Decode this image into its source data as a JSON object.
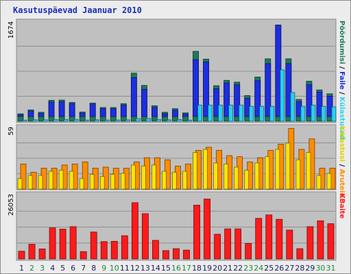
{
  "chart_data": {
    "type": "bar",
    "title": "Kasutuspäevad Jaanuar 2010",
    "categories": [
      "1",
      "2",
      "3",
      "4",
      "5",
      "6",
      "7",
      "8",
      "9",
      "10",
      "11",
      "12",
      "13",
      "14",
      "15",
      "16",
      "17",
      "18",
      "19",
      "20",
      "21",
      "22",
      "23",
      "24",
      "25",
      "26",
      "27",
      "28",
      "29",
      "30",
      "31"
    ],
    "weekend_days": [
      "2",
      "3",
      "9",
      "10",
      "16",
      "17",
      "23",
      "24",
      "30",
      "31"
    ],
    "panels": [
      {
        "id": "top",
        "max_label": "1674",
        "ylim": [
          0,
          1674
        ],
        "right_labels": [
          "Külastused",
          "Faile",
          "Pöördumisi"
        ],
        "series": [
          {
            "name": "Pöördumisi",
            "color": "#1c7a5a",
            "values": [
              125,
              190,
              150,
              350,
              355,
              315,
              155,
              305,
              230,
              230,
              295,
              805,
              600,
              260,
              150,
              210,
              140,
              1170,
              1040,
              595,
              685,
              655,
              430,
              740,
              1045,
              1610,
              1045,
              365,
              670,
              525,
              460
            ]
          },
          {
            "name": "Faile",
            "color": "#1c2ee0",
            "values": [
              105,
              170,
              130,
              320,
              325,
              295,
              135,
              285,
              210,
              210,
              270,
              730,
              535,
              230,
              125,
              185,
              120,
              1030,
              990,
              545,
              640,
              610,
              385,
              680,
              965,
              1610,
              965,
              325,
              610,
              490,
              420
            ]
          },
          {
            "name": "Külastused",
            "color": "#2ad0f0",
            "values": [
              20,
              25,
              25,
              30,
              30,
              30,
              20,
              25,
              22,
              22,
              25,
              45,
              45,
              30,
              25,
              30,
              20,
              270,
              270,
              270,
              270,
              270,
              250,
              250,
              250,
              860,
              480,
              250,
              270,
              250,
              240
            ]
          }
        ]
      },
      {
        "id": "middle",
        "max_label": "59",
        "ylim": [
          0,
          59
        ],
        "right_labels": [
          "Aruteid",
          "Külastusi"
        ],
        "series": [
          {
            "name": "Aruteid",
            "color": "#ff8c00",
            "values": [
              24,
              16,
              20,
              20,
              23,
              24,
              26,
              20,
              21,
              20,
              20,
              26,
              30,
              30,
              28,
              22,
              24,
              37,
              40,
              37,
              32,
              31,
              26,
              30,
              37,
              43,
              58,
              38,
              48,
              20,
              20
            ]
          },
          {
            "name": "Külastusi",
            "color": "#ffe400",
            "values": [
              10,
              13,
              13,
              17,
              18,
              17,
              10,
              14,
              12,
              14,
              15,
              23,
              22,
              23,
              17,
              16,
              17,
              35,
              38,
              25,
              24,
              21,
              18,
              25,
              31,
              38,
              44,
              28,
              35,
              13,
              15
            ]
          }
        ]
      },
      {
        "id": "bottom",
        "max_label": "26053",
        "ylim": [
          0,
          26053
        ],
        "right_labels": [
          "KBaite"
        ],
        "series": [
          {
            "name": "KBaite",
            "color": "#ff1a1a",
            "values": [
              3150,
              6000,
              4100,
              12700,
              12200,
              13200,
              3000,
              11000,
              7100,
              7200,
              9500,
              23000,
              18500,
              7600,
              3400,
              4200,
              3600,
              22000,
              24500,
              10100,
              12300,
              12300,
              6300,
              16600,
              18000,
              16200,
              11800,
              4200,
              13200,
              15600,
              14400
            ]
          }
        ]
      }
    ]
  }
}
